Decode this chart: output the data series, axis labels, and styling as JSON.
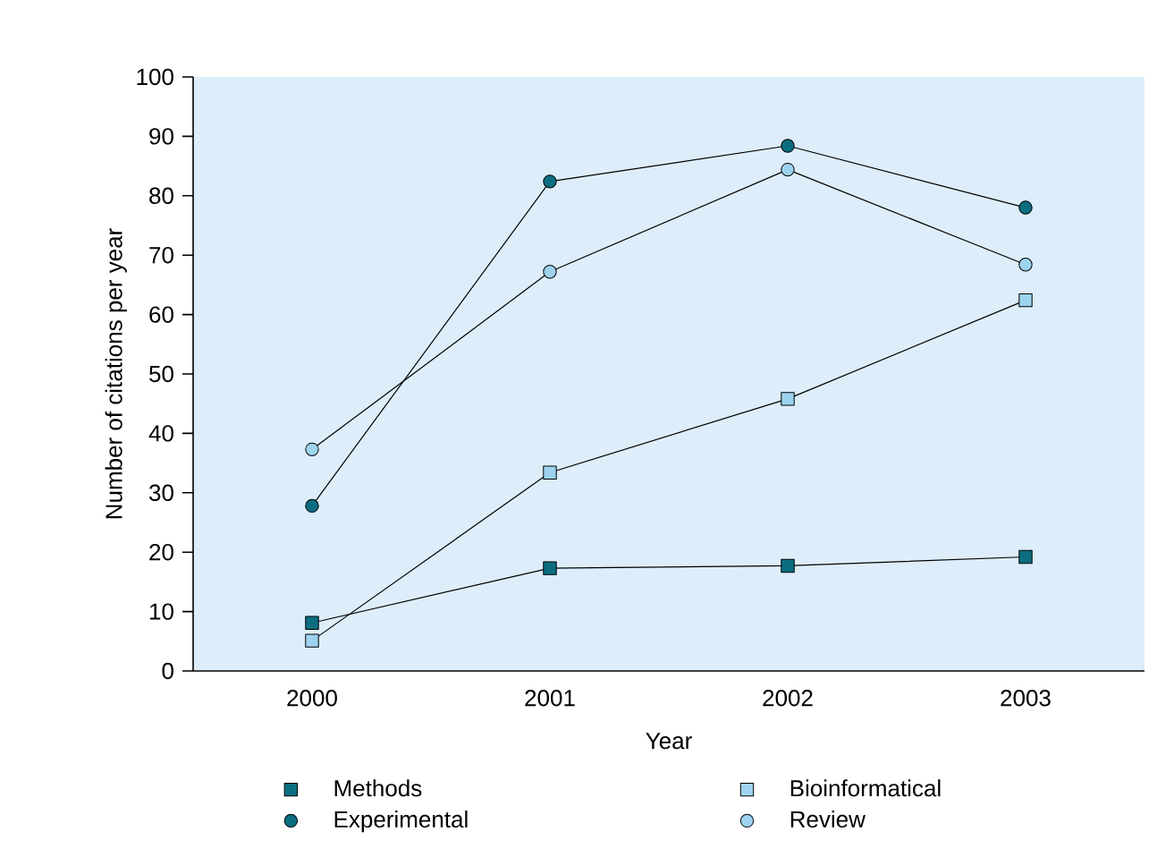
{
  "chart_data": {
    "type": "line",
    "xlabel": "Year",
    "ylabel": "Number of citations per year",
    "categories": [
      "2000",
      "2001",
      "2002",
      "2003"
    ],
    "series": [
      {
        "name": "Methods",
        "color": "#0b6e80",
        "marker": "square",
        "values": [
          8.1,
          17.3,
          17.7,
          19.2
        ]
      },
      {
        "name": "Bioinformatical",
        "color": "#9dd3ef",
        "marker": "square",
        "values": [
          5.1,
          33.4,
          45.8,
          62.4
        ]
      },
      {
        "name": "Experimental",
        "color": "#0b6e80",
        "marker": "circle",
        "values": [
          27.8,
          82.4,
          88.4,
          78.0
        ]
      },
      {
        "name": "Review",
        "color": "#9dd3ef",
        "marker": "circle",
        "values": [
          37.3,
          67.2,
          84.4,
          68.4
        ]
      }
    ],
    "ylim": [
      0,
      100
    ],
    "yticks": [
      0,
      10,
      20,
      30,
      40,
      50,
      60,
      70,
      80,
      90,
      100
    ],
    "grid": false,
    "legend": "bottom",
    "line_style": "solid"
  }
}
